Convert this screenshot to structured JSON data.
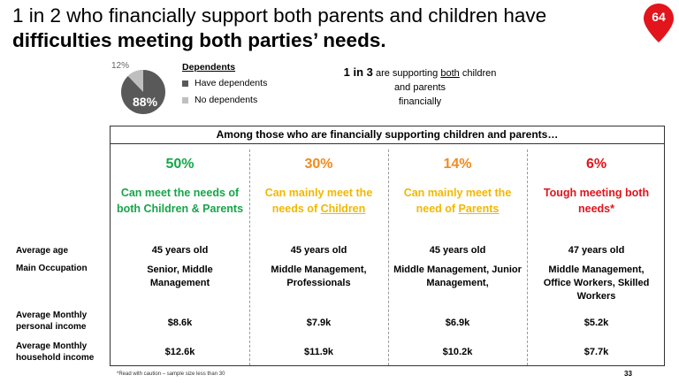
{
  "title": {
    "line1": "1 in 2 who financially support both parents and children have",
    "line2": "difficulties meeting both parties’ needs."
  },
  "badge": {
    "number": "64",
    "color": "#e2141c"
  },
  "pie": {
    "have_dependents_pct": "88%",
    "no_dependents_pct": "12%",
    "colors": {
      "have": "#595959",
      "none": "#bfbfbf"
    }
  },
  "legend": {
    "title": "Dependents",
    "items": [
      {
        "label": "Have dependents",
        "color": "#595959"
      },
      {
        "label": "No dependents",
        "color": "#bfbfbf"
      }
    ]
  },
  "callout": {
    "bold": "1 in 3",
    "text_pre": " are supporting ",
    "underlined": "both",
    "text_post": " children",
    "line2": "and parents",
    "line3": "financially"
  },
  "table": {
    "header": "Among those who are financially supporting children and parents…",
    "columns": [
      {
        "pct": "50%",
        "desc_pre": "Can meet the needs of both Children & Parents",
        "desc_ul": "",
        "desc_post": "",
        "color": "green"
      },
      {
        "pct": "30%",
        "desc_pre": "Can mainly meet the needs of ",
        "desc_ul": "Children",
        "desc_post": "",
        "color": "orange"
      },
      {
        "pct": "14%",
        "desc_pre": "Can mainly meet the need of ",
        "desc_ul": "Parents",
        "desc_post": "",
        "color": "orange"
      },
      {
        "pct": "6%",
        "desc_pre": "Tough meeting both needs*",
        "desc_ul": "",
        "desc_post": "",
        "color": "red"
      }
    ],
    "rows": [
      {
        "label": "Average age",
        "values": [
          "45 years old",
          "45 years old",
          "45 years old",
          "47 years old"
        ]
      },
      {
        "label": "Main Occupation",
        "values": [
          "Senior, Middle Management",
          "Middle Management, Professionals",
          "Middle Management, Junior Management,",
          "Middle Management, Office Workers, Skilled Workers"
        ]
      },
      {
        "label": "Average Monthly personal income",
        "values": [
          "$8.6k",
          "$7.9k",
          "$6.9k",
          "$5.2k"
        ]
      },
      {
        "label": "Average Monthly household income",
        "values": [
          "$12.6k",
          "$11.9k",
          "$10.2k",
          "$7.7k"
        ]
      }
    ]
  },
  "footnote": "*Read with caution – sample size less than 30",
  "page_number": "33"
}
